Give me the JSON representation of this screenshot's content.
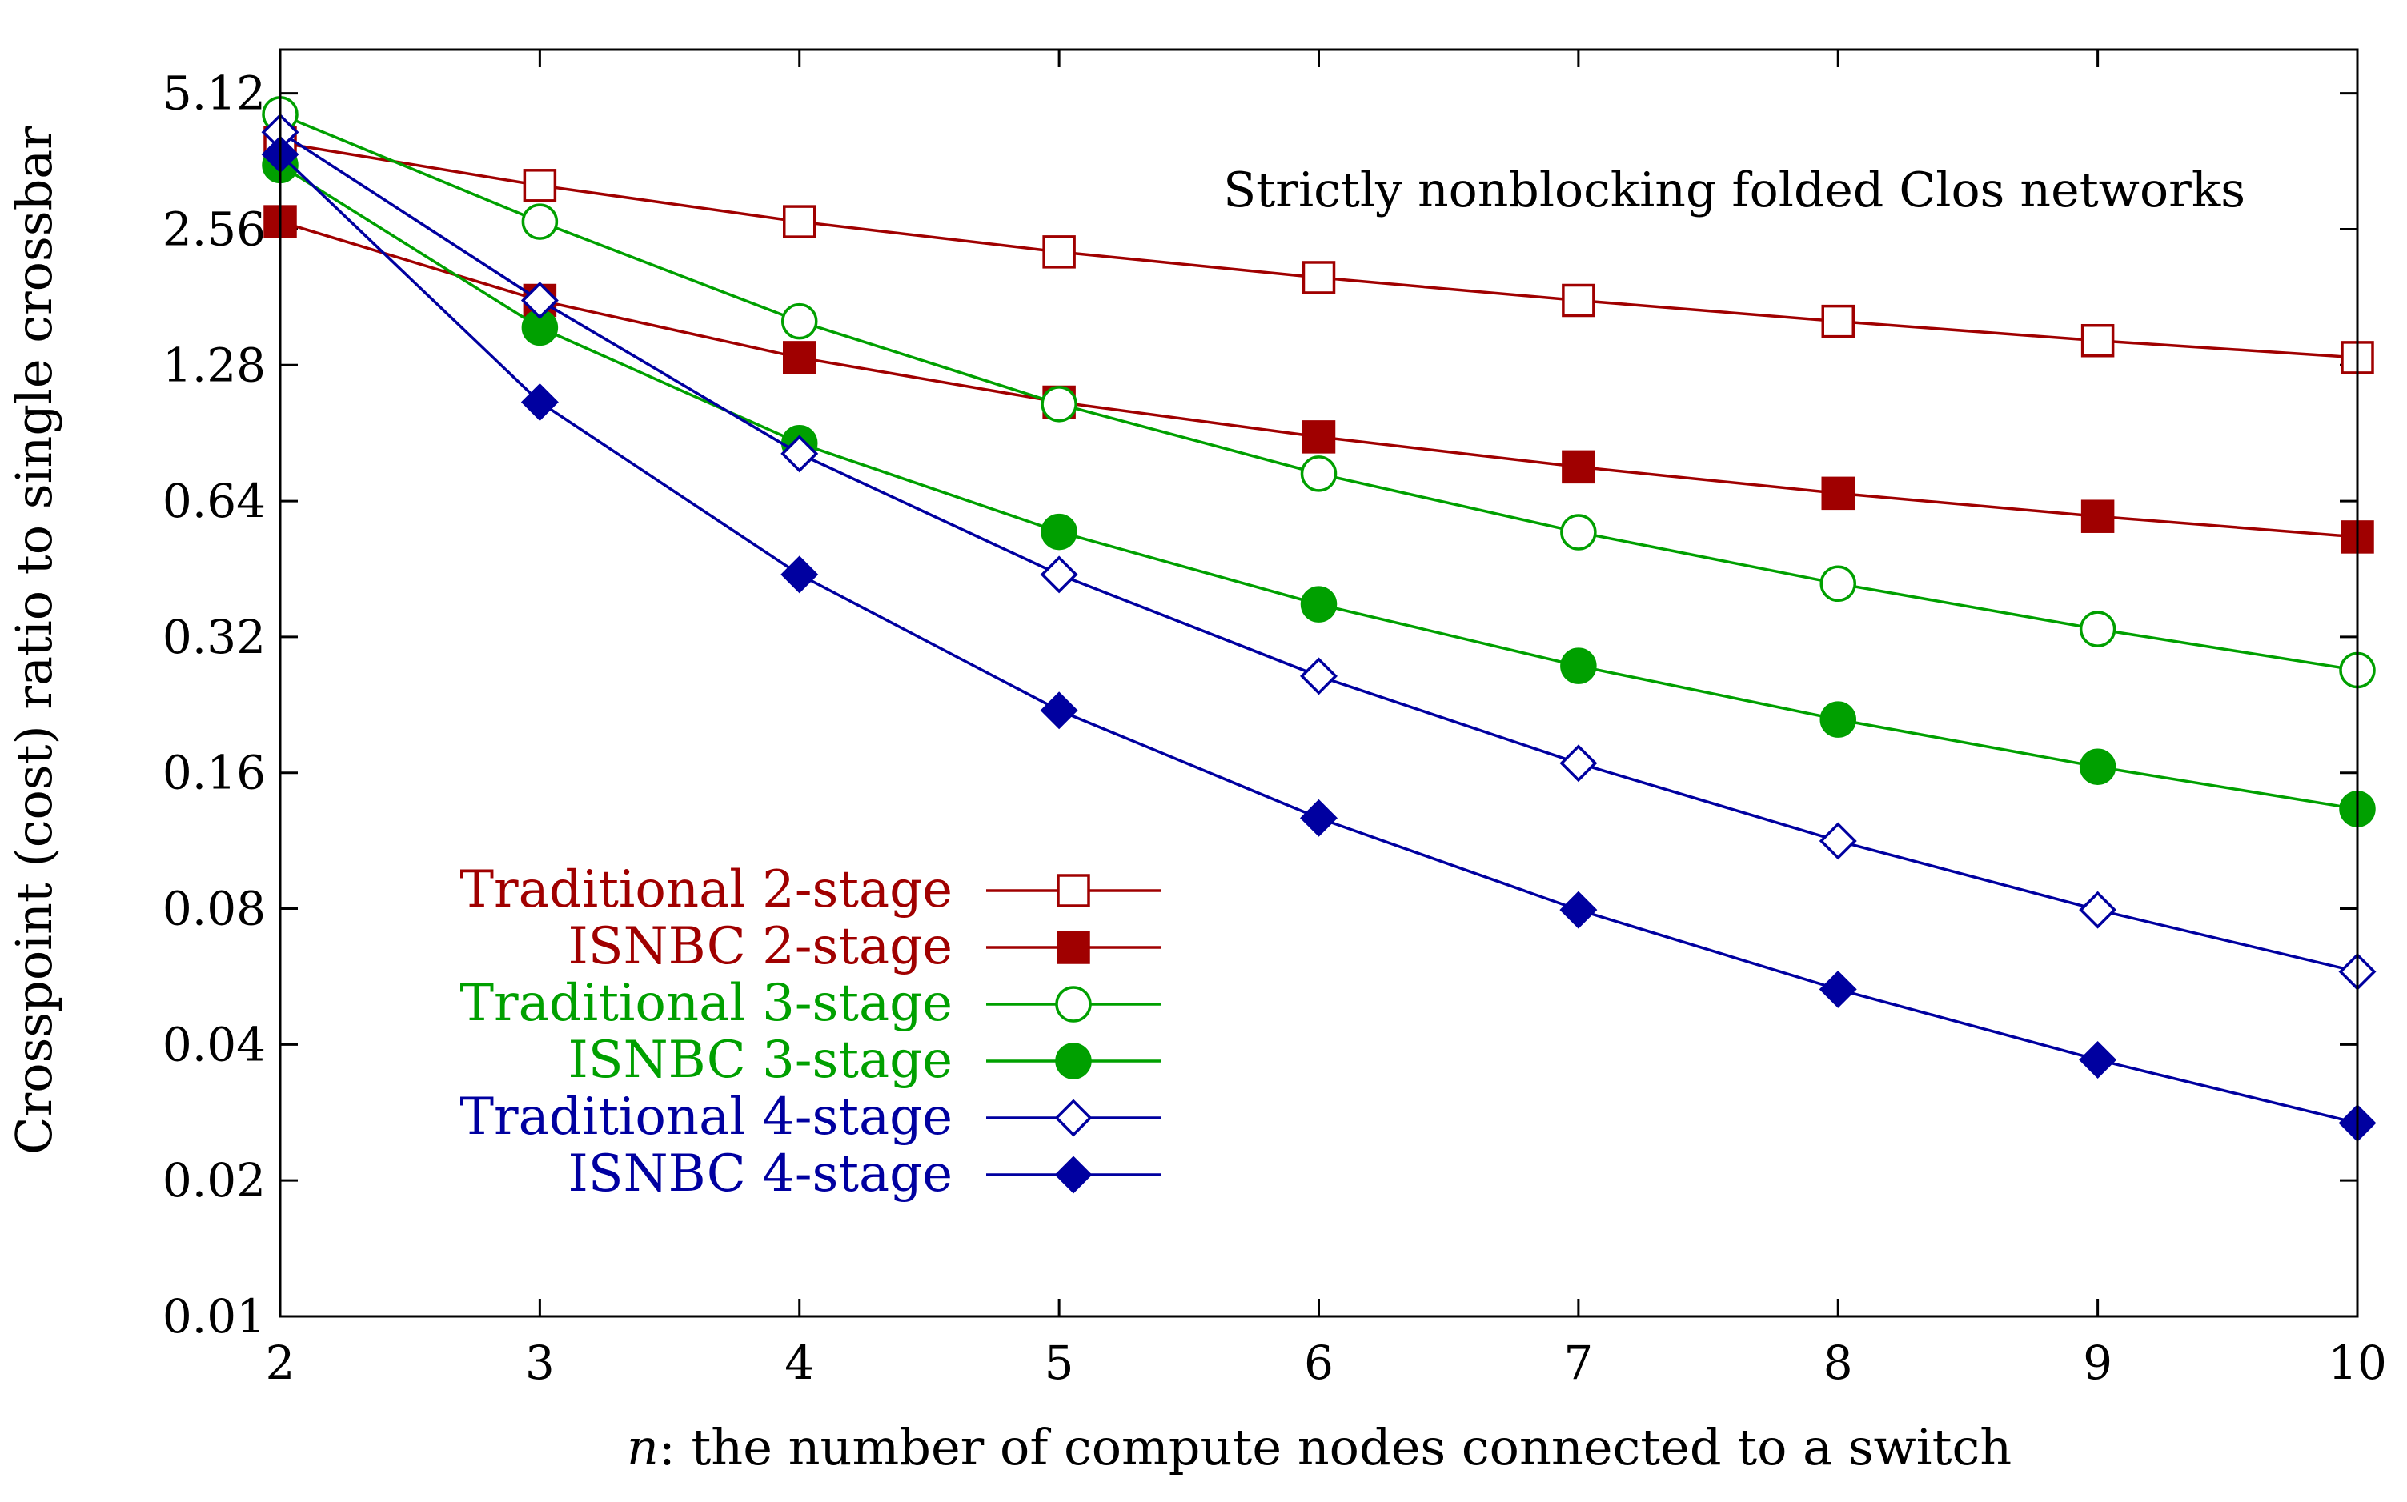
{
  "chart_data": {
    "type": "line",
    "title": "",
    "annotation": "Strictly nonblocking folded Clos networks",
    "xlabel_italic": "n",
    "xlabel_rest": ": the number of compute nodes connected to a switch",
    "ylabel": "Crosspoint (cost) ratio to single crossbar",
    "x": [
      2,
      3,
      4,
      5,
      6,
      7,
      8,
      9,
      10
    ],
    "x_ticks": [
      "2",
      "3",
      "4",
      "5",
      "6",
      "7",
      "8",
      "9",
      "10"
    ],
    "y_scale": "log2",
    "y_ticks": [
      {
        "value": 0.01,
        "label": "0.01"
      },
      {
        "value": 0.02,
        "label": "0.02"
      },
      {
        "value": 0.04,
        "label": "0.04"
      },
      {
        "value": 0.08,
        "label": "0.08"
      },
      {
        "value": 0.16,
        "label": "0.16"
      },
      {
        "value": 0.32,
        "label": "0.32"
      },
      {
        "value": 0.64,
        "label": "0.64"
      },
      {
        "value": 1.28,
        "label": "1.28"
      },
      {
        "value": 2.56,
        "label": "2.56"
      },
      {
        "value": 5.12,
        "label": "5.12"
      }
    ],
    "xlim": [
      2,
      10
    ],
    "ylim": [
      0.01,
      6.4
    ],
    "legend_position": "center-left",
    "series": [
      {
        "name": "Traditional 2-stage",
        "color": "#a00000",
        "marker": "square-open",
        "values": [
          3.98,
          3.2,
          2.66,
          2.28,
          2.0,
          1.78,
          1.6,
          1.45,
          1.33
        ]
      },
      {
        "name": "ISNBC 2-stage",
        "color": "#a00000",
        "marker": "square-filled",
        "values": [
          2.66,
          1.78,
          1.33,
          1.06,
          0.888,
          0.762,
          0.666,
          0.592,
          0.533
        ]
      },
      {
        "name": "Traditional 3-stage",
        "color": "#00a000",
        "marker": "circle-open",
        "values": [
          4.6,
          2.66,
          1.6,
          1.05,
          0.736,
          0.546,
          0.42,
          0.333,
          0.27
        ]
      },
      {
        "name": "ISNBC 3-stage",
        "color": "#00a000",
        "marker": "circle-filled",
        "values": [
          3.55,
          1.55,
          0.86,
          0.547,
          0.378,
          0.276,
          0.21,
          0.165,
          0.133
        ]
      },
      {
        "name": "Traditional 4-stage",
        "color": "#0000a0",
        "marker": "diamond-open",
        "values": [
          4.2,
          1.78,
          0.815,
          0.44,
          0.262,
          0.168,
          0.113,
          0.0795,
          0.058
        ]
      },
      {
        "name": "ISNBC 4-stage",
        "color": "#0000a0",
        "marker": "diamond-filled",
        "values": [
          3.75,
          1.06,
          0.44,
          0.22,
          0.127,
          0.0795,
          0.053,
          0.037,
          0.0268
        ]
      }
    ]
  }
}
